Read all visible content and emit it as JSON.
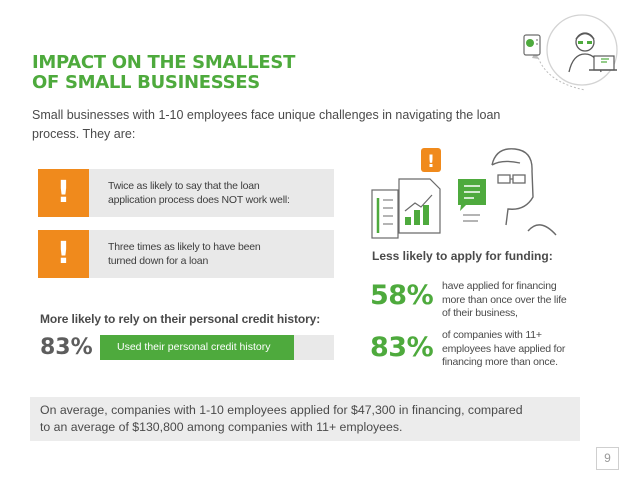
{
  "header": {
    "title_line1": "IMPACT ON THE SMALLEST",
    "title_line2": "OF SMALL BUSINESSES",
    "subtitle": "Small businesses with 1-10 employees face unique challenges in navigating the loan process. They are:",
    "icon": "person-at-computer-icon"
  },
  "cards": [
    {
      "icon": "exclamation-icon",
      "symbol": "!",
      "text_line1": "Twice as likely to say that the loan",
      "text_line2": "application process does NOT work well:"
    },
    {
      "icon": "exclamation-icon",
      "symbol": "!",
      "text_line1": "Three times as likely to have been",
      "text_line2": "turned down for a loan"
    }
  ],
  "personal_credit": {
    "label": "More likely to rely on their personal credit history:",
    "percent_label": "83%",
    "percent_value": 0.83,
    "bar_text": "Used their personal credit history"
  },
  "funding": {
    "illustration_icon": "person-with-loan-documents-icon",
    "alert_symbol": "!",
    "label": "Less likely to apply for funding:",
    "stats": [
      {
        "percent": "58%",
        "line1": "have applied for financing",
        "line2": "more than once over the life",
        "line3": "of their business,"
      },
      {
        "percent": "83%",
        "line1": "of companies with 11+",
        "line2": "employees have applied for",
        "line3": "financing more than once."
      }
    ]
  },
  "footer": {
    "line1": "On average, companies with 1-10 employees applied for $47,300 in financing, compared",
    "line2": "to an average of $130,800 among companies with 11+ employees."
  },
  "page_number": "9",
  "colors": {
    "accent_green": "#4eaa3d",
    "alert_orange": "#f08a1c",
    "card_gray": "#e9e9e9"
  }
}
